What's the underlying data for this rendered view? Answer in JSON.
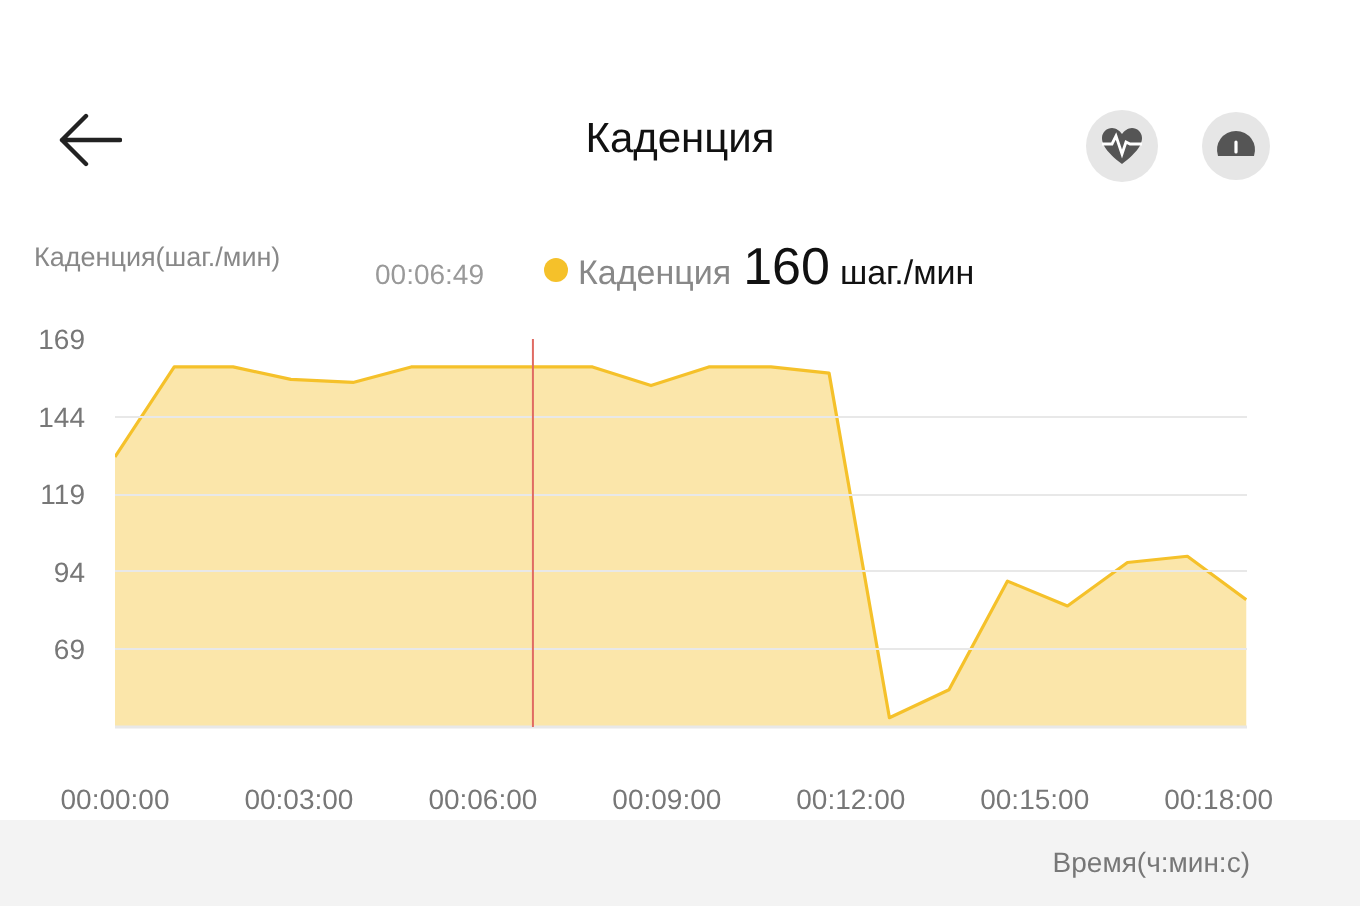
{
  "chart_data": {
    "type": "area",
    "title": "Каденция",
    "xlabel": "Время(ч:мин:с)",
    "ylabel": "Каденция(шаг./мин)",
    "x": [
      0,
      0.0161,
      0.0321,
      0.0478,
      0.0647,
      0.0805,
      0.0968,
      0.1136,
      0.1298,
      0.1457,
      0.1614,
      0.1783,
      0.1941,
      0.2105,
      0.2267,
      0.2426,
      0.2589,
      0.2752,
      0.2915,
      0.3075
    ],
    "series": [
      {
        "name": "Каденция",
        "color": "#f5c12a",
        "values": [
          131,
          160,
          160,
          156,
          155,
          160,
          160,
          160,
          160,
          154,
          160,
          160,
          158,
          47,
          56,
          91,
          83,
          97,
          99,
          85
        ]
      }
    ],
    "xlim": [
      0,
      0.3077
    ],
    "xticks": [
      {
        "value": 0,
        "label": "00:00:00"
      },
      {
        "value": 0.05,
        "label": "00:03:00"
      },
      {
        "value": 0.1,
        "label": "00:06:00"
      },
      {
        "value": 0.15,
        "label": "00:09:00"
      },
      {
        "value": 0.2,
        "label": "00:12:00"
      },
      {
        "value": 0.25,
        "label": "00:15:00"
      },
      {
        "value": 0.3,
        "label": "00:18:00"
      }
    ],
    "ylim": [
      44,
      169
    ],
    "yticks": [
      {
        "value": 44,
        "label": null
      },
      69,
      94,
      119,
      144,
      169
    ],
    "grid": "y",
    "legend": "top",
    "ref_lines": [
      {
        "axis": "x",
        "value": 0.1136,
        "label": "00:06:49",
        "color": "#e06b63"
      }
    ],
    "annotations": [
      "160",
      "шаг./мин"
    ]
  }
}
